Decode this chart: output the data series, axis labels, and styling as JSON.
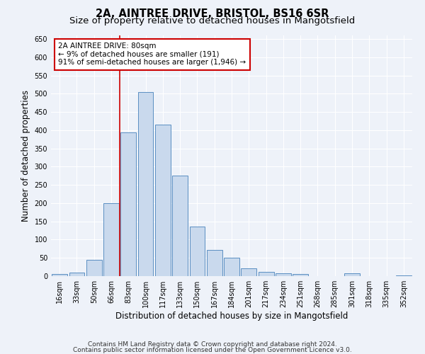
{
  "title": "2A, AINTREE DRIVE, BRISTOL, BS16 6SR",
  "subtitle": "Size of property relative to detached houses in Mangotsfield",
  "xlabel": "Distribution of detached houses by size in Mangotsfield",
  "ylabel": "Number of detached properties",
  "footnote1": "Contains HM Land Registry data © Crown copyright and database right 2024.",
  "footnote2": "Contains public sector information licensed under the Open Government Licence v3.0.",
  "categories": [
    "16sqm",
    "33sqm",
    "50sqm",
    "66sqm",
    "83sqm",
    "100sqm",
    "117sqm",
    "133sqm",
    "150sqm",
    "167sqm",
    "184sqm",
    "201sqm",
    "217sqm",
    "234sqm",
    "251sqm",
    "268sqm",
    "285sqm",
    "301sqm",
    "318sqm",
    "335sqm",
    "352sqm"
  ],
  "values": [
    5,
    10,
    45,
    200,
    395,
    505,
    415,
    275,
    135,
    72,
    50,
    22,
    12,
    8,
    5,
    0,
    0,
    7,
    0,
    0,
    2
  ],
  "bar_color": "#c9d9ed",
  "bar_edge_color": "#5a8fc2",
  "annotation_text": "2A AINTREE DRIVE: 80sqm\n← 9% of detached houses are smaller (191)\n91% of semi-detached houses are larger (1,946) →",
  "annotation_box_color": "#ffffff",
  "annotation_box_edge": "#cc0000",
  "vline_color": "#cc0000",
  "ylim": [
    0,
    660
  ],
  "yticks": [
    0,
    50,
    100,
    150,
    200,
    250,
    300,
    350,
    400,
    450,
    500,
    550,
    600,
    650
  ],
  "bg_color": "#eef2f9",
  "grid_color": "#ffffff",
  "title_fontsize": 10.5,
  "subtitle_fontsize": 9.5,
  "axis_label_fontsize": 8.5,
  "tick_fontsize": 7,
  "footnote_fontsize": 6.5,
  "annotation_fontsize": 7.5,
  "vline_bin_index": 4
}
